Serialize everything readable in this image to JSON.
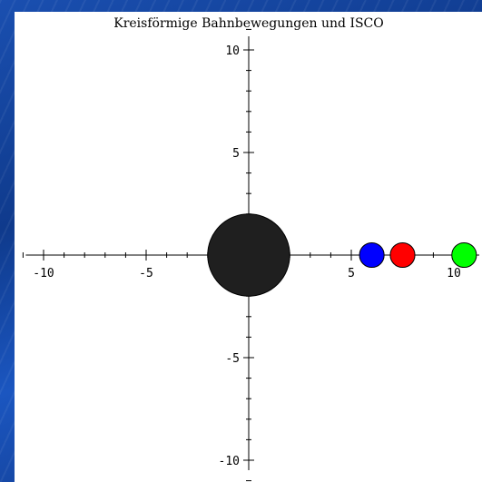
{
  "chart_data": {
    "type": "scatter",
    "title": "Kreisförmige Bahnbewegungen und ISCO",
    "xlabel": "",
    "ylabel": "",
    "xlim": [
      -11,
      11
    ],
    "ylim": [
      -11,
      11
    ],
    "xticks": [
      -10,
      -5,
      0,
      5,
      10
    ],
    "yticks": [
      10,
      5,
      -5,
      -10
    ],
    "x_tick_labels": [
      "-10",
      "-5",
      "0",
      "5",
      "10"
    ],
    "y_tick_labels": [
      "10",
      "5",
      "-5",
      "-10"
    ],
    "grid": false,
    "series": [
      {
        "x": [
          0
        ],
        "y": [
          0
        ],
        "radius": 2,
        "color": "#1f1f1f"
      },
      {
        "x": [
          6
        ],
        "y": [
          0
        ],
        "radius": 0.6,
        "color": "#0000ff"
      },
      {
        "x": [
          7.5
        ],
        "y": [
          0
        ],
        "radius": 0.6,
        "color": "#ff0000"
      },
      {
        "x": [
          10.5
        ],
        "y": [
          0
        ],
        "radius": 0.6,
        "color": "#00ff00"
      }
    ]
  }
}
